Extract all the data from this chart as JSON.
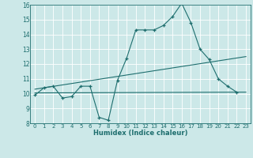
{
  "xlabel": "Humidex (Indice chaleur)",
  "xlim": [
    -0.5,
    23.5
  ],
  "ylim": [
    8,
    16
  ],
  "xticks": [
    0,
    1,
    2,
    3,
    4,
    5,
    6,
    7,
    8,
    9,
    10,
    11,
    12,
    13,
    14,
    15,
    16,
    17,
    18,
    19,
    20,
    21,
    22,
    23
  ],
  "yticks": [
    8,
    9,
    10,
    11,
    12,
    13,
    14,
    15,
    16
  ],
  "bg_color": "#cce8e8",
  "line_color": "#1e6e6e",
  "line1_x": [
    0,
    1,
    2,
    3,
    4,
    5,
    6,
    7,
    8,
    9,
    10,
    11,
    12,
    13,
    14,
    15,
    16,
    17,
    18,
    19,
    20,
    21,
    22
  ],
  "line1_y": [
    9.9,
    10.4,
    10.5,
    9.7,
    9.8,
    10.5,
    10.5,
    8.4,
    8.2,
    10.9,
    12.4,
    14.3,
    14.3,
    14.3,
    14.6,
    15.2,
    16.1,
    14.8,
    13.0,
    12.3,
    11.0,
    10.5,
    10.1
  ],
  "line2_x": [
    0,
    23
  ],
  "line2_y": [
    10.3,
    12.5
  ],
  "line3_x": [
    0,
    23
  ],
  "line3_y": [
    10.05,
    10.1
  ]
}
